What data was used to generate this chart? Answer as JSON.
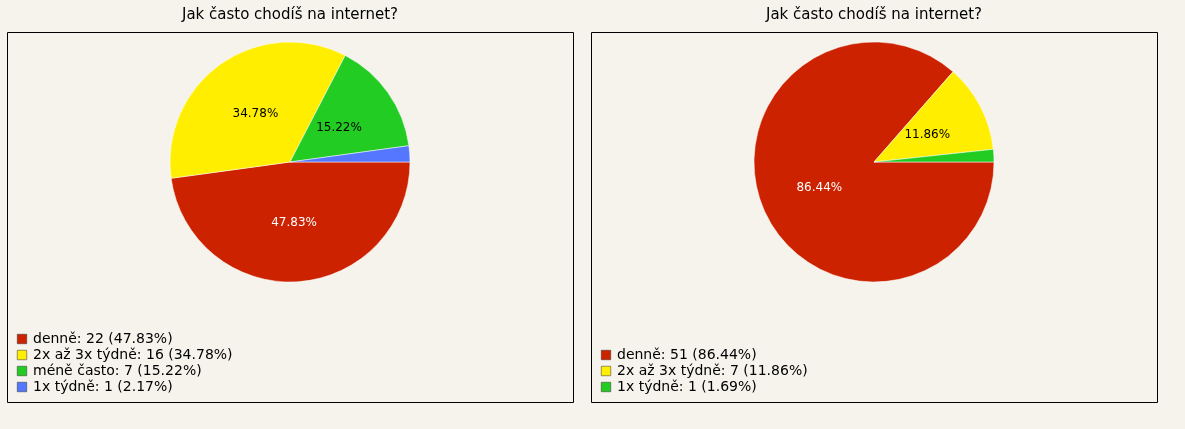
{
  "chart_data": [
    {
      "type": "pie",
      "title": "Jak často chodíš na internet?",
      "categories": [
        "denně: 22 (47.83%)",
        "2x až 3x týdně: 16 (34.78%)",
        "méně často: 7 (15.22%)",
        "1x týdně: 1 (2.17%)"
      ],
      "values": [
        47.83,
        34.78,
        15.22,
        2.17
      ],
      "colors": [
        "#cc2200",
        "#ffee00",
        "#22cc22",
        "#5577ff"
      ],
      "value_labels": [
        "47.83%",
        "34.78%",
        "15.22%",
        null
      ],
      "legend": "bottom left"
    },
    {
      "type": "pie",
      "title": "Jak často chodíš na internet?",
      "categories": [
        "denně: 51 (86.44%)",
        "2x až 3x týdně: 7 (11.86%)",
        "1x týdně: 1 (1.69%)"
      ],
      "values": [
        86.44,
        11.86,
        1.69
      ],
      "colors": [
        "#cc2200",
        "#ffee00",
        "#22cc22"
      ],
      "value_labels": [
        "86.44%",
        "11.86%",
        null
      ],
      "legend": "bottom left"
    }
  ]
}
